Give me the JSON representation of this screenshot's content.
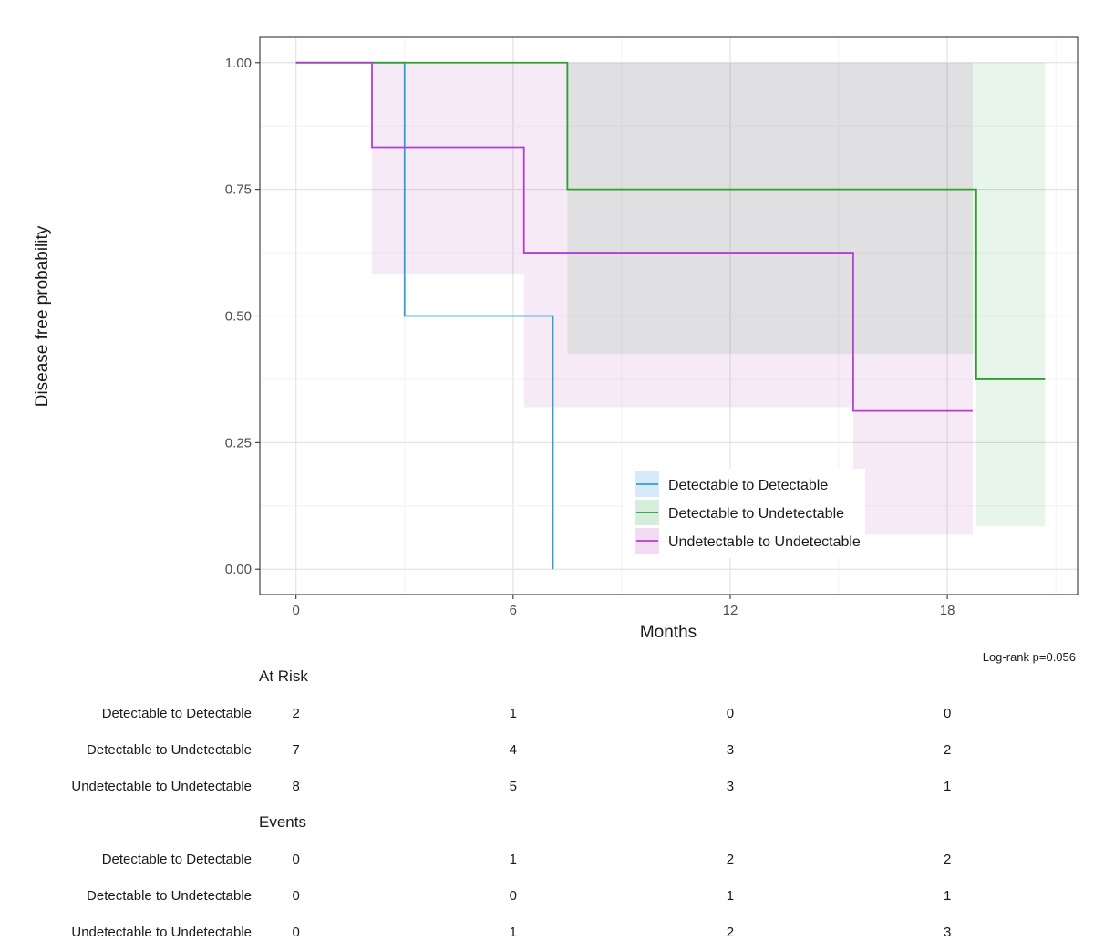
{
  "chart_data": {
    "type": "line",
    "subtype": "kaplan-meier",
    "title": "",
    "xlabel": "Months",
    "ylabel": "Disease free probability",
    "xlim": [
      -1,
      21.6
    ],
    "ylim": [
      -0.05,
      1.05
    ],
    "x_ticks": [
      0,
      6,
      12,
      18
    ],
    "x_tick_labels": [
      "0",
      "6",
      "12",
      "18"
    ],
    "y_ticks": [
      0,
      0.25,
      0.5,
      0.75,
      1.0
    ],
    "y_tick_labels": [
      "0.00",
      "0.25",
      "0.50",
      "0.75",
      "1.00"
    ],
    "grid": true,
    "legend_position": "bottom-center",
    "annotation": "Log-rank p=0.056",
    "series": [
      {
        "name": "Detectable to Detectable",
        "color": "#2f9fd8",
        "fill": "#d4eaf7",
        "steps": [
          [
            0,
            1.0
          ],
          [
            3.0,
            0.5
          ],
          [
            7.1,
            0.0
          ]
        ],
        "end_x": 7.1,
        "ci": []
      },
      {
        "name": "Detectable to Undetectable",
        "color": "#2ca02c",
        "fill": "#d5ecd9",
        "steps": [
          [
            0,
            1.0
          ],
          [
            7.5,
            0.75
          ],
          [
            18.8,
            0.375
          ]
        ],
        "end_x": 20.7,
        "ci": [
          {
            "x0": 7.5,
            "x1": 18.8,
            "lower": 0.425,
            "upper": 1.0
          },
          {
            "x0": 18.8,
            "x1": 20.7,
            "lower": 0.085,
            "upper": 1.0
          }
        ]
      },
      {
        "name": "Undetectable to Undetectable",
        "color": "#b23fd4",
        "fill": "#f0d8f1",
        "steps": [
          [
            0,
            1.0
          ],
          [
            2.1,
            0.833
          ],
          [
            6.3,
            0.625
          ],
          [
            15.4,
            0.3125
          ]
        ],
        "end_x": 18.7,
        "ci": [
          {
            "x0": 2.1,
            "x1": 6.3,
            "lower": 0.583,
            "upper": 1.0
          },
          {
            "x0": 6.3,
            "x1": 15.4,
            "lower": 0.32,
            "upper": 1.0
          },
          {
            "x0": 15.4,
            "x1": 18.7,
            "lower": 0.068,
            "upper": 1.0
          }
        ]
      }
    ]
  },
  "risk_table": {
    "at_risk_title": "At Risk",
    "events_title": "Events",
    "time_points": [
      0,
      6,
      12,
      18
    ],
    "at_risk_rows": [
      {
        "label": "Detectable to Detectable",
        "values": [
          "2",
          "1",
          "0",
          "0"
        ]
      },
      {
        "label": "Detectable to Undetectable",
        "values": [
          "7",
          "4",
          "3",
          "2"
        ]
      },
      {
        "label": "Undetectable to Undetectable",
        "values": [
          "8",
          "5",
          "3",
          "1"
        ]
      }
    ],
    "events_rows": [
      {
        "label": "Detectable to Detectable",
        "values": [
          "0",
          "1",
          "2",
          "2"
        ]
      },
      {
        "label": "Detectable to Undetectable",
        "values": [
          "0",
          "0",
          "1",
          "1"
        ]
      },
      {
        "label": "Undetectable to Undetectable",
        "values": [
          "0",
          "1",
          "2",
          "3"
        ]
      }
    ]
  }
}
